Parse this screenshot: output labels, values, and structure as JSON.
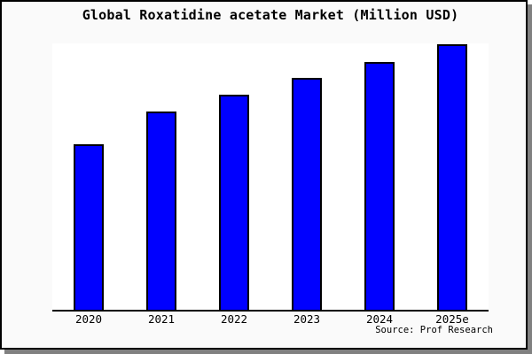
{
  "chart_data": {
    "type": "bar",
    "title": "Global Roxatidine acetate Market (Million USD)",
    "categories": [
      "2020",
      "2021",
      "2022",
      "2023",
      "2024",
      "2025e"
    ],
    "values": [
      62.5,
      74.9,
      81.3,
      87.6,
      93.6,
      100
    ],
    "xlabel": "",
    "ylabel": "",
    "ylim": [
      0,
      100.5
    ],
    "grid": false,
    "legend": null,
    "y_axis_shown": false,
    "bar_color": "#0000ff",
    "bar_edge_color": "#000000"
  },
  "source": {
    "text": "Source: Prof Research"
  },
  "colors": {
    "figure_background": "#fafafa",
    "plot_background": "#ffffff",
    "axis_color": "#000000",
    "frame_border": "#000000",
    "frame_shadow": "#808080",
    "text_color": "#000000"
  }
}
